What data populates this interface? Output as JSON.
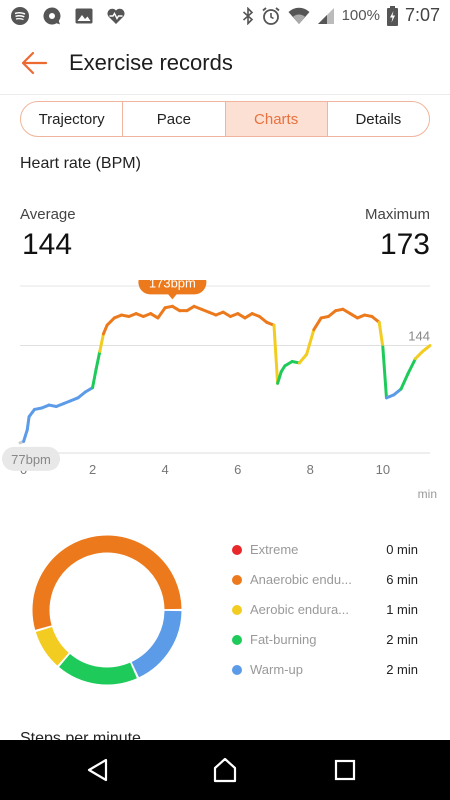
{
  "status_bar": {
    "battery_percent": "100%",
    "time": "7:07",
    "icons": [
      "spotify-icon",
      "chat-icon",
      "image-icon",
      "health-icon",
      "bluetooth-icon",
      "alarm-icon",
      "wifi-icon",
      "signal-icon",
      "battery-icon"
    ]
  },
  "header": {
    "title": "Exercise records",
    "back_icon": "arrow-left-icon"
  },
  "tabs": [
    {
      "label": "Trajectory",
      "active": false
    },
    {
      "label": "Pace",
      "active": false
    },
    {
      "label": "Charts",
      "active": true
    },
    {
      "label": "Details",
      "active": false
    }
  ],
  "heart_rate": {
    "title": "Heart rate (BPM)",
    "average_label": "Average",
    "average_value": "144",
    "maximum_label": "Maximum",
    "maximum_value": "173"
  },
  "chart_data": {
    "type": "line",
    "xlabel": "min",
    "ylabel": "",
    "x_ticks": [
      "0",
      "2",
      "4",
      "6",
      "8",
      "10"
    ],
    "xlim": [
      0,
      11.3
    ],
    "ylim": [
      70,
      185
    ],
    "reference_line": {
      "value": 144,
      "label": "144"
    },
    "max_marker": {
      "x": 4.2,
      "y": 173,
      "label": "173bpm"
    },
    "min_marker": {
      "x": 0.1,
      "y": 77,
      "label": "77bpm"
    },
    "series": [
      {
        "x": [
          0.0,
          0.1,
          0.15,
          0.2,
          0.25,
          0.4,
          0.6,
          0.8,
          1.0,
          1.2,
          1.4,
          1.6,
          1.8,
          2.0,
          2.1,
          2.2,
          2.3,
          2.4,
          2.6,
          2.8,
          3.0,
          3.2,
          3.4,
          3.6,
          3.8,
          4.0,
          4.2,
          4.4,
          4.6,
          4.8,
          5.0,
          5.2,
          5.4,
          5.6,
          5.8,
          6.0,
          6.2,
          6.4,
          6.6,
          6.8,
          7.0,
          7.1,
          7.2,
          7.3,
          7.5,
          7.7,
          7.9,
          8.1,
          8.3,
          8.5,
          8.7,
          8.9,
          9.1,
          9.3,
          9.5,
          9.7,
          9.9,
          10.0,
          10.1,
          10.2,
          10.3,
          10.5,
          10.7,
          10.9,
          11.1,
          11.2,
          11.3
        ],
        "values": [
          77,
          78,
          82,
          86,
          95,
          100,
          101,
          103,
          102,
          104,
          106,
          108,
          112,
          115,
          128,
          140,
          152,
          158,
          163,
          165,
          164,
          166,
          164,
          166,
          163,
          170,
          171,
          168,
          168,
          171,
          169,
          167,
          165,
          167,
          164,
          166,
          163,
          166,
          164,
          160,
          158,
          118,
          126,
          130,
          133,
          132,
          138,
          155,
          163,
          164,
          168,
          169,
          166,
          163,
          165,
          164,
          160,
          143,
          108,
          109,
          110,
          114,
          125,
          135,
          140,
          142,
          144
        ]
      }
    ],
    "zone_colors": {
      "warm_up": "#5b9be8",
      "fat_burning": "#1ecb5a",
      "aerobic": "#f3cc22",
      "anaerobic": "#ec7a1d",
      "extreme": "#e8282b"
    },
    "line_color_neutral": "#cccccc"
  },
  "zones": {
    "items": [
      {
        "name": "Extreme",
        "value": "0 min",
        "minutes": 0,
        "color": "#e8282b"
      },
      {
        "name": "Anaerobic endu...",
        "value": "6 min",
        "minutes": 6,
        "color": "#ec7a1d"
      },
      {
        "name": "Aerobic endura...",
        "value": "1 min",
        "minutes": 1,
        "color": "#f3cc22"
      },
      {
        "name": "Fat-burning",
        "value": "2 min",
        "minutes": 2,
        "color": "#1ecb5a"
      },
      {
        "name": "Warm-up",
        "value": "2 min",
        "minutes": 2,
        "color": "#5b9be8"
      }
    ]
  },
  "next_section": {
    "title": "Steps per minute"
  },
  "nav_bar": {
    "icons": [
      "back-triangle-icon",
      "home-icon",
      "recents-icon"
    ]
  }
}
